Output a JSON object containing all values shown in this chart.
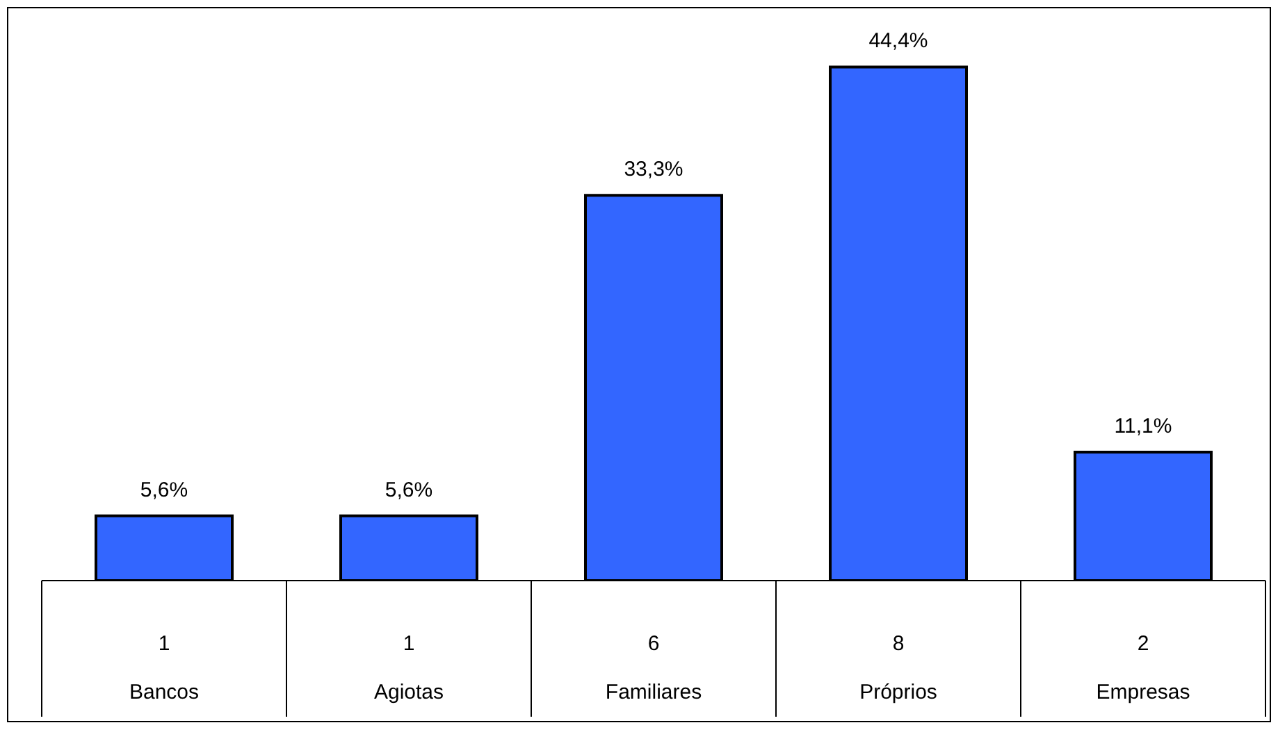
{
  "chart_data": {
    "type": "bar",
    "categories": [
      "Bancos",
      "Agiotas",
      "Familiares",
      "Próprios",
      "Empresas"
    ],
    "values": [
      5.6,
      5.6,
      33.3,
      44.4,
      11.1
    ],
    "value_labels": [
      "5,6%",
      "5,6%",
      "33,3%",
      "44,4%",
      "11,1%"
    ],
    "color": "#3366ff",
    "annotations": [
      "1",
      "1",
      "6",
      "8",
      "2"
    ]
  }
}
